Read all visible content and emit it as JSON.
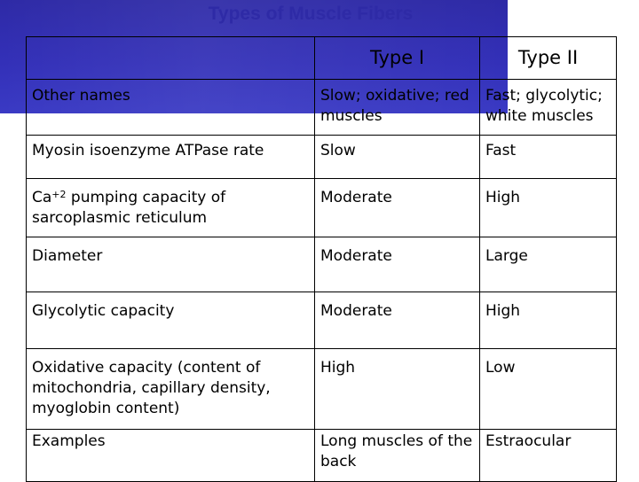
{
  "title": "Types of Muscle Fibers",
  "colors": {
    "band": "#3330b8",
    "type_i_header": "#d01020",
    "title": "#2e2aa6"
  },
  "table": {
    "headers": [
      "",
      "Type I",
      "Type II"
    ],
    "rows": [
      {
        "label": "Other names",
        "type_i": "Slow; oxidative; red muscles",
        "type_ii": "Fast; glycolytic; white muscles"
      },
      {
        "label": "Myosin isoenzyme ATPase rate",
        "type_i": "Slow",
        "type_ii": "Fast"
      },
      {
        "label_prefix": "Ca",
        "label_sup": "+2",
        "label_rest": " pumping capacity of sarcoplasmic reticulum",
        "type_i": "Moderate",
        "type_ii": "High"
      },
      {
        "label": "Diameter",
        "type_i": "Moderate",
        "type_ii": "Large"
      },
      {
        "label": "Glycolytic capacity",
        "type_i": "Moderate",
        "type_ii": "High"
      },
      {
        "label": "Oxidative capacity (content of mitochondria, capillary density, myoglobin content)",
        "type_i": "High",
        "type_ii": "Low"
      },
      {
        "label": "Examples",
        "type_i": "Long muscles of the back",
        "type_ii": "Estraocular"
      }
    ]
  }
}
